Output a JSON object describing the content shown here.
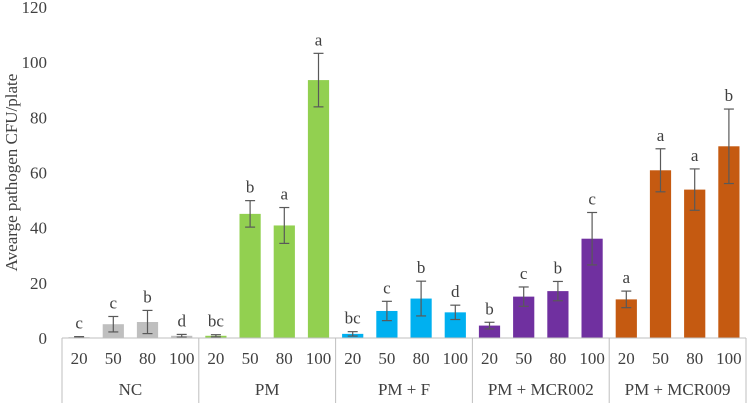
{
  "chart_data": {
    "type": "bar",
    "title": "",
    "xlabel": "",
    "ylabel": "Avearge pathogen CFU/plate",
    "ylim": [
      0,
      120
    ],
    "yticks": [
      0,
      20,
      40,
      60,
      80,
      100,
      120
    ],
    "grid": false,
    "legend": "none",
    "groups": [
      {
        "label": "NC",
        "color": "#bfbfbf",
        "bars": [
          {
            "x": "20",
            "value": 0.3,
            "error": 0.2,
            "letter": "c"
          },
          {
            "x": "50",
            "value": 5.0,
            "error": 2.8,
            "letter": "c"
          },
          {
            "x": "80",
            "value": 5.8,
            "error": 4.2,
            "letter": "b"
          },
          {
            "x": "100",
            "value": 0.8,
            "error": 0.5,
            "letter": "d"
          }
        ]
      },
      {
        "label": "PM",
        "color": "#92d050",
        "bars": [
          {
            "x": "20",
            "value": 0.8,
            "error": 0.4,
            "letter": "bc"
          },
          {
            "x": "50",
            "value": 45.0,
            "error": 4.8,
            "letter": "b"
          },
          {
            "x": "80",
            "value": 40.8,
            "error": 6.5,
            "letter": "a"
          },
          {
            "x": "100",
            "value": 93.5,
            "error": 9.7,
            "letter": "a"
          }
        ]
      },
      {
        "label": "PM + F",
        "color": "#00b0f0",
        "bars": [
          {
            "x": "20",
            "value": 1.5,
            "error": 0.8,
            "letter": "bc"
          },
          {
            "x": "50",
            "value": 9.8,
            "error": 3.5,
            "letter": "c"
          },
          {
            "x": "80",
            "value": 14.3,
            "error": 6.3,
            "letter": "b"
          },
          {
            "x": "100",
            "value": 9.3,
            "error": 2.6,
            "letter": "d"
          }
        ]
      },
      {
        "label": "PM + MCR002",
        "color": "#7030a0",
        "bars": [
          {
            "x": "20",
            "value": 4.5,
            "error": 1.2,
            "letter": "b"
          },
          {
            "x": "50",
            "value": 15.0,
            "error": 3.5,
            "letter": "c"
          },
          {
            "x": "80",
            "value": 17.0,
            "error": 3.5,
            "letter": "b"
          },
          {
            "x": "100",
            "value": 36.0,
            "error": 9.5,
            "letter": "c"
          }
        ]
      },
      {
        "label": "PM + MCR009",
        "color": "#c55a11",
        "bars": [
          {
            "x": "20",
            "value": 14.0,
            "error": 3.0,
            "letter": "a"
          },
          {
            "x": "50",
            "value": 60.8,
            "error": 7.8,
            "letter": "a"
          },
          {
            "x": "80",
            "value": 53.8,
            "error": 7.5,
            "letter": "a"
          },
          {
            "x": "100",
            "value": 69.5,
            "error": 13.5,
            "letter": "b"
          }
        ]
      }
    ]
  }
}
